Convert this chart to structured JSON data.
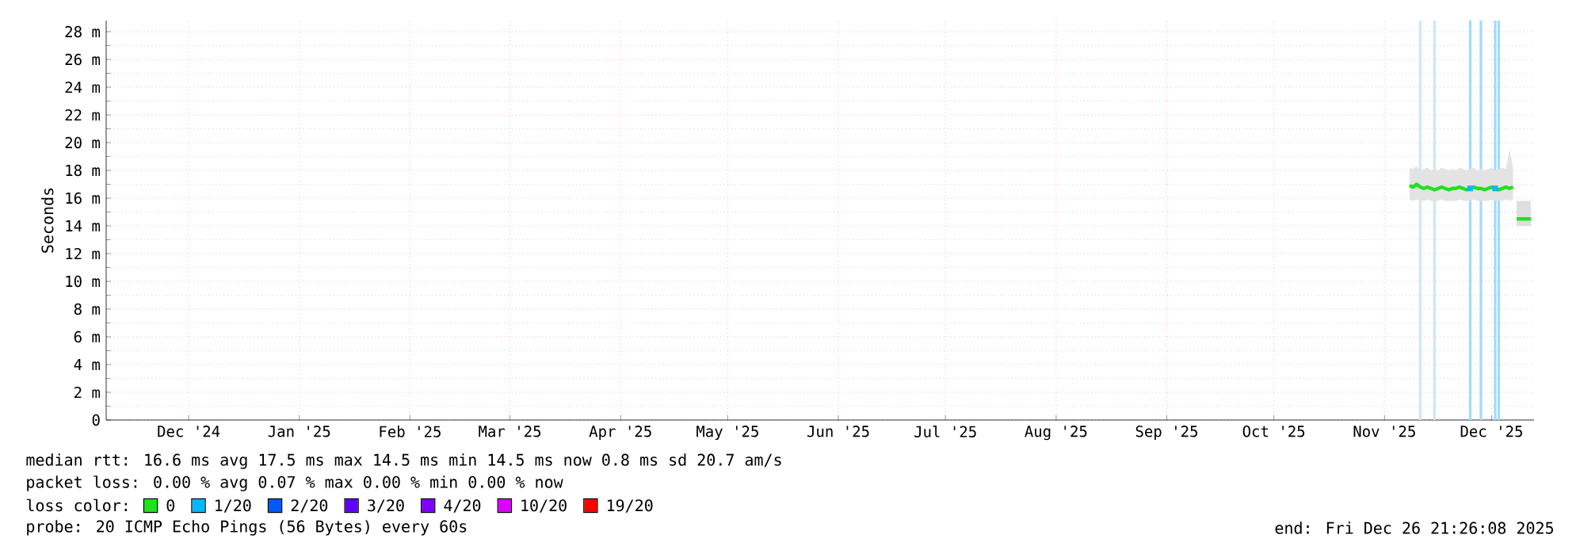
{
  "chart_data": {
    "type": "line",
    "ylabel": "Seconds",
    "x": [
      "2025-11-22",
      "2025-11-23",
      "2025-11-24",
      "2025-11-25",
      "2025-11-26",
      "2025-11-27",
      "2025-11-28",
      "2025-11-29",
      "2025-11-30",
      "2025-12-01",
      "2025-12-02",
      "2025-12-03",
      "2025-12-04",
      "2025-12-05",
      "2025-12-06",
      "2025-12-07",
      "2025-12-08",
      "2025-12-09",
      "2025-12-10",
      "2025-12-11",
      "2025-12-12",
      "2025-12-13",
      "2025-12-14",
      "2025-12-15",
      "2025-12-16",
      "2025-12-17",
      "2025-12-18",
      "2025-12-19",
      "2025-12-20",
      "2025-12-21",
      "2025-12-21T18:00",
      "2025-12-22",
      "2025-12-23",
      "2025-12-24",
      "2025-12-25",
      "2025-12-26"
    ],
    "series": [
      {
        "name": "0",
        "color": "#20e020",
        "values": [
          16.9,
          16.8,
          17.0,
          16.8,
          16.7,
          16.8,
          16.7,
          16.6,
          16.7,
          16.8,
          16.7,
          16.6,
          16.7,
          16.7,
          16.8,
          16.7,
          16.6,
          16.7,
          16.8,
          16.7,
          16.7,
          16.6,
          16.7,
          16.8,
          16.7,
          16.6,
          16.7,
          16.8,
          16.7,
          16.8,
          null,
          null,
          null,
          null,
          null,
          null
        ],
        "lower": [
          15.9,
          15.8,
          15.9,
          15.8,
          15.8,
          15.9,
          15.8,
          15.8,
          15.8,
          15.9,
          15.8,
          15.8,
          15.8,
          15.8,
          15.9,
          15.8,
          15.8,
          15.8,
          15.9,
          15.8,
          15.8,
          15.8,
          15.8,
          15.9,
          15.8,
          15.8,
          15.8,
          15.9,
          15.8,
          15.9,
          null,
          null,
          null,
          null,
          null,
          null
        ],
        "upper": [
          18.2,
          18.1,
          18.3,
          18.0,
          18.1,
          18.2,
          18.0,
          18.1,
          18.0,
          18.2,
          18.1,
          18.0,
          18.1,
          18.0,
          18.2,
          18.1,
          18.0,
          18.1,
          18.2,
          18.0,
          18.1,
          18.0,
          18.1,
          18.2,
          18.0,
          18.1,
          18.2,
          18.1,
          19.5,
          18.2,
          null,
          null,
          null,
          null,
          null,
          null
        ]
      },
      {
        "name": "1/20",
        "color": "#00b8ff",
        "type": "scatter",
        "marker": "square",
        "x": [
          "2025-12-09",
          "2025-12-16"
        ],
        "values": [
          16.7,
          16.7
        ]
      },
      {
        "name": "2/20",
        "color": "#0059ff",
        "values": [
          null,
          null,
          null,
          null,
          null,
          null,
          null,
          null,
          null,
          null,
          null,
          null,
          null,
          null,
          null,
          null,
          null,
          null,
          null,
          null,
          null,
          null,
          null,
          null,
          null,
          null,
          null,
          null,
          null,
          null,
          null,
          null,
          null,
          null,
          null,
          null
        ]
      },
      {
        "name": "3/20",
        "color": "#5e00ff",
        "values": [
          null,
          null,
          null,
          null,
          null,
          null,
          null,
          null,
          null,
          null,
          null,
          null,
          null,
          null,
          null,
          null,
          null,
          null,
          null,
          null,
          null,
          null,
          null,
          null,
          null,
          null,
          null,
          null,
          null,
          null,
          null,
          null,
          null,
          null,
          null,
          null
        ]
      },
      {
        "name": "4/20",
        "color": "#7e00ff",
        "values": [
          null,
          null,
          null,
          null,
          null,
          null,
          null,
          null,
          null,
          null,
          null,
          null,
          null,
          null,
          null,
          null,
          null,
          null,
          null,
          null,
          null,
          null,
          null,
          null,
          null,
          null,
          null,
          null,
          null,
          null,
          null,
          null,
          null,
          null,
          null,
          null
        ]
      },
      {
        "name": "10/20",
        "color": "#dd00ff",
        "values": [
          null,
          null,
          null,
          null,
          null,
          null,
          null,
          null,
          null,
          null,
          null,
          null,
          null,
          null,
          null,
          null,
          null,
          null,
          null,
          null,
          null,
          null,
          null,
          null,
          null,
          null,
          null,
          null,
          null,
          null,
          null,
          null,
          null,
          null,
          null,
          null
        ]
      },
      {
        "name": "19/20",
        "color": "#ff0000",
        "values": [
          null,
          null,
          null,
          null,
          null,
          null,
          null,
          null,
          null,
          null,
          null,
          null,
          null,
          null,
          null,
          null,
          null,
          null,
          null,
          null,
          null,
          null,
          null,
          null,
          null,
          null,
          null,
          null,
          null,
          null,
          null,
          null,
          null,
          null,
          null,
          null
        ]
      },
      {
        "color": "#20e020",
        "values": [
          null,
          null,
          null,
          null,
          null,
          null,
          null,
          null,
          null,
          null,
          null,
          null,
          null,
          null,
          null,
          null,
          null,
          null,
          null,
          null,
          null,
          null,
          null,
          null,
          null,
          null,
          null,
          null,
          null,
          null,
          null,
          14.5,
          14.5,
          14.5,
          14.5,
          14.5
        ],
        "lower": [
          null,
          null,
          null,
          null,
          null,
          null,
          null,
          null,
          null,
          null,
          null,
          null,
          null,
          null,
          null,
          null,
          null,
          null,
          null,
          null,
          null,
          null,
          null,
          null,
          null,
          null,
          null,
          null,
          null,
          null,
          null,
          14.0,
          14.0,
          14.0,
          14.0,
          14.0
        ],
        "upper": [
          null,
          null,
          null,
          null,
          null,
          null,
          null,
          null,
          null,
          null,
          null,
          null,
          null,
          null,
          null,
          null,
          null,
          null,
          null,
          null,
          null,
          null,
          null,
          null,
          null,
          null,
          null,
          null,
          null,
          null,
          null,
          15.8,
          15.8,
          15.8,
          15.8,
          15.8
        ]
      }
    ],
    "xlim": [
      "2024-11-21T21:26",
      "2025-12-26T21:26"
    ],
    "xticks": [
      {
        "value": "2024-12-15",
        "label": "Dec '24"
      },
      {
        "value": "2025-01-15",
        "label": "Jan '25"
      },
      {
        "value": "2025-02-15",
        "label": "Feb '25"
      },
      {
        "value": "2025-03-15",
        "label": "Mar '25"
      },
      {
        "value": "2025-04-15",
        "label": "Apr '25"
      },
      {
        "value": "2025-05-15",
        "label": "May '25"
      },
      {
        "value": "2025-06-15",
        "label": "Jun '25"
      },
      {
        "value": "2025-07-15",
        "label": "Jul '25"
      },
      {
        "value": "2025-08-15",
        "label": "Aug '25"
      },
      {
        "value": "2025-09-15",
        "label": "Sep '25"
      },
      {
        "value": "2025-10-15",
        "label": "Oct '25"
      },
      {
        "value": "2025-11-15",
        "label": "Nov '25"
      },
      {
        "value": "2025-12-15",
        "label": "Dec '25"
      }
    ],
    "ylim": [
      0,
      28.8
    ],
    "yticks": [
      0,
      {
        "value": 2,
        "label": "2 m"
      },
      {
        "value": 4,
        "label": "4 m"
      },
      {
        "value": 6,
        "label": "6 m"
      },
      {
        "value": 8,
        "label": "8 m"
      },
      {
        "value": 10,
        "label": "10 m"
      },
      {
        "value": 12,
        "label": "12 m"
      },
      {
        "value": 14,
        "label": "14 m"
      },
      {
        "value": 16,
        "label": "16 m"
      },
      {
        "value": 18,
        "label": "18 m"
      },
      {
        "value": 20,
        "label": "20 m"
      },
      {
        "value": 22,
        "label": "22 m"
      },
      {
        "value": 24,
        "label": "24 m"
      },
      {
        "value": 26,
        "label": "26 m"
      },
      {
        "value": 28,
        "label": "28 m"
      }
    ],
    "ref_lines": [
      {
        "axis": "x",
        "value": "2025-11-25",
        "color": "#cce8f8"
      },
      {
        "axis": "x",
        "value": "2025-11-29",
        "color": "#cce8f8"
      },
      {
        "axis": "x",
        "value": "2025-12-09",
        "color": "#a0dcf8"
      },
      {
        "axis": "x",
        "value": "2025-12-12",
        "color": "#a0dcf8"
      },
      {
        "axis": "x",
        "value": "2025-12-16",
        "color": "#a0dcf8"
      },
      {
        "axis": "x",
        "value": "2025-12-17",
        "color": "#a0dcf8"
      }
    ],
    "grid": true,
    "legend": "bottom",
    "legend_title": "loss color:",
    "annotations": [
      "median rtt: 16.6 ms avg 17.5 ms max 14.5 ms min 14.5 ms now 0.8 ms sd 20.7 am/s",
      "packet loss: 0.00 % avg 0.07 % max 0.00 % min 0.00 % now",
      "probe: 20 ICMP Echo Pings (56 Bytes) every 60s",
      "end: Fri Dec 26 21:26:08 2025"
    ]
  }
}
